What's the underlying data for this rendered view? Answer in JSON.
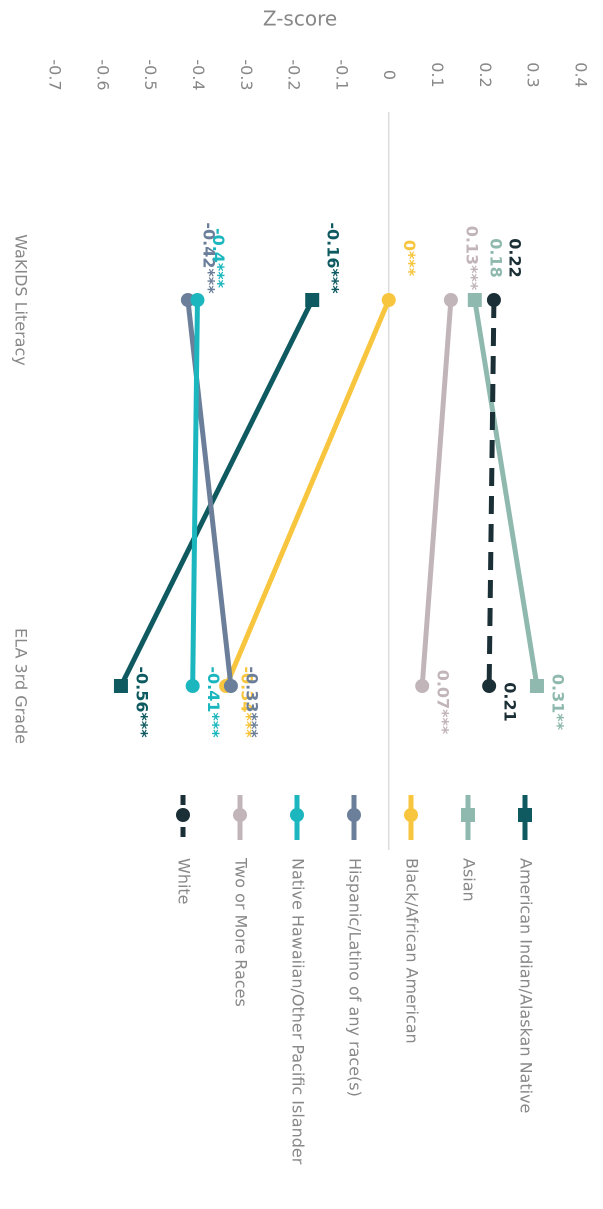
{
  "chart_data": {
    "type": "line",
    "y_label": "Z-score",
    "categories": [
      "WaKIDS Literacy",
      "ELA 3rd Grade"
    ],
    "ylim": [
      -0.7,
      0.4
    ],
    "yticks": [
      0.4,
      0.3,
      0.2,
      0.1,
      0,
      -0.1,
      -0.2,
      -0.3,
      -0.4,
      -0.5,
      -0.6,
      -0.7
    ],
    "series": [
      {
        "name": "American Indian/Alaskan Native",
        "color": "#0f5a61",
        "marker": "square",
        "values": [
          -0.16,
          -0.56
        ],
        "value_labels": [
          "-0.16***",
          "-0.56***"
        ]
      },
      {
        "name": "Asian",
        "color": "#8fb9ae",
        "marker": "square",
        "values": [
          0.18,
          0.31
        ],
        "value_labels": [
          "0.18",
          "0.31**"
        ]
      },
      {
        "name": "Black/African American",
        "color": "#f8c53f",
        "marker": "circle",
        "values": [
          0,
          -0.34
        ],
        "value_labels": [
          "0***",
          "-0.34***"
        ]
      },
      {
        "name": "Hispanic/Latino of any race(s)",
        "color": "#6b7f9a",
        "marker": "circle",
        "values": [
          -0.42,
          -0.33
        ],
        "value_labels": [
          "-0.42***",
          "-0.33***"
        ]
      },
      {
        "name": "Native Hawaiian/Other Pacific Islander",
        "color": "#1bb6be",
        "marker": "circle",
        "values": [
          -0.4,
          -0.41
        ],
        "value_labels": [
          "-0.4***",
          "-0.41***"
        ]
      },
      {
        "name": "Two or More Races",
        "color": "#c2b5b9",
        "marker": "circle",
        "values": [
          0.13,
          0.07
        ],
        "value_labels": [
          "0.13***",
          "0.07***"
        ]
      },
      {
        "name": "White",
        "color": "#1b2f36",
        "marker": "circle",
        "dashed": true,
        "values": [
          0.22,
          0.21
        ]
      }
    ]
  }
}
